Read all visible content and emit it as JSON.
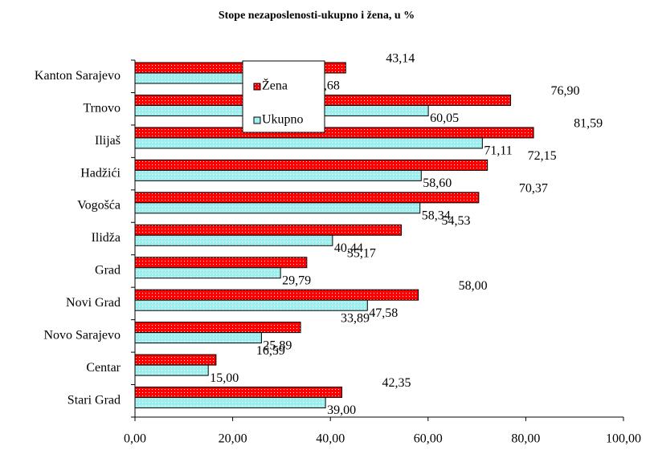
{
  "chart_data": {
    "type": "barh",
    "title": "Stope nezaposlenosti-ukupno i žena, u %",
    "categories": [
      "Kanton Sarajevo",
      "Trnovo",
      "Ilijaš",
      "Hadžići",
      "Vogošća",
      "Ilidža",
      "Grad",
      "Novi Grad",
      "Novo Sarajevo",
      "Centar",
      "Stari Grad"
    ],
    "series": [
      {
        "name": "Žena",
        "color": "#ff0000",
        "values": [
          43.14,
          76.9,
          81.59,
          72.15,
          70.37,
          54.53,
          35.17,
          58.0,
          33.89,
          16.59,
          42.35
        ],
        "value_labels": [
          "43,14",
          "76,90",
          "81,59",
          "72,15",
          "70,37",
          "54,53",
          "35,17",
          "58,00",
          "33,89",
          "16,59",
          "42,35"
        ]
      },
      {
        "name": "Ukupno",
        "color": "#9eeeee",
        "values": [
          35.68,
          60.05,
          71.11,
          58.6,
          58.34,
          40.44,
          29.79,
          47.58,
          25.89,
          15.0,
          39.0
        ],
        "value_labels": [
          "35,68",
          "60,05",
          "71,11",
          "58,60",
          "58,34",
          "40,44",
          "29,79",
          "47,58",
          "25,89",
          "15,00",
          "39,00"
        ]
      }
    ],
    "xlim": [
      0,
      100
    ],
    "xticks": [
      {
        "value": 0,
        "label": "0,00"
      },
      {
        "value": 20,
        "label": "20,00"
      },
      {
        "value": 40,
        "label": "40,00"
      },
      {
        "value": 60,
        "label": "60,00"
      },
      {
        "value": 80,
        "label": "80,00"
      },
      {
        "value": 100,
        "label": "100,00"
      }
    ],
    "grid": false,
    "legend": "top-left"
  }
}
